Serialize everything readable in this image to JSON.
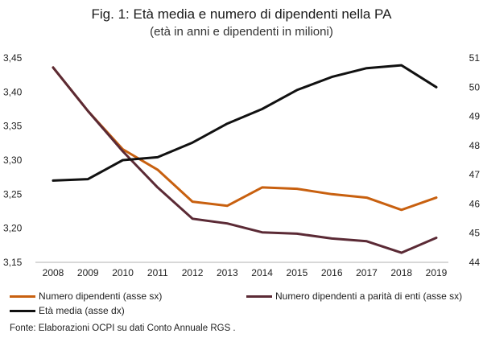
{
  "chart_data": {
    "type": "line",
    "title": "Fig. 1: Età media e numero di dipendenti nella PA",
    "subtitle": "(età in anni e dipendenti in milioni)",
    "categories": [
      "2008",
      "2009",
      "2010",
      "2011",
      "2012",
      "2013",
      "2014",
      "2015",
      "2016",
      "2017",
      "2018",
      "2019"
    ],
    "y_left": {
      "range": [
        3.15,
        3.45
      ],
      "ticks": [
        "3,15",
        "3,20",
        "3,25",
        "3,30",
        "3,35",
        "3,40",
        "3,45"
      ],
      "tick_values": [
        3.15,
        3.2,
        3.25,
        3.3,
        3.35,
        3.4,
        3.45
      ]
    },
    "y_right": {
      "range": [
        44,
        51
      ],
      "ticks": [
        "44",
        "45",
        "46",
        "47",
        "48",
        "49",
        "50",
        "51"
      ],
      "tick_values": [
        44,
        45,
        46,
        47,
        48,
        49,
        50,
        51
      ]
    },
    "series": [
      {
        "name": "Numero dipendenti (asse sx)",
        "axis": "left",
        "color": "#c8600f",
        "values": [
          3.436,
          3.372,
          3.316,
          3.286,
          3.239,
          3.233,
          3.26,
          3.258,
          3.25,
          3.245,
          3.227,
          3.245
        ]
      },
      {
        "name": "Numero dipendenti a parità di enti (asse sx)",
        "axis": "left",
        "color": "#5b2a35",
        "values": [
          3.436,
          3.372,
          3.313,
          3.26,
          3.214,
          3.207,
          3.194,
          3.192,
          3.185,
          3.181,
          3.164,
          3.186
        ]
      },
      {
        "name": "Età media (asse dx)",
        "axis": "right",
        "color": "#111111",
        "values": [
          46.8,
          46.85,
          47.5,
          47.6,
          48.1,
          48.75,
          49.25,
          49.9,
          50.35,
          50.65,
          50.75,
          50.0
        ]
      }
    ],
    "grid": false
  },
  "source_note": "Fonte: Elaborazioni OCPI su dati Conto Annuale RGS ."
}
